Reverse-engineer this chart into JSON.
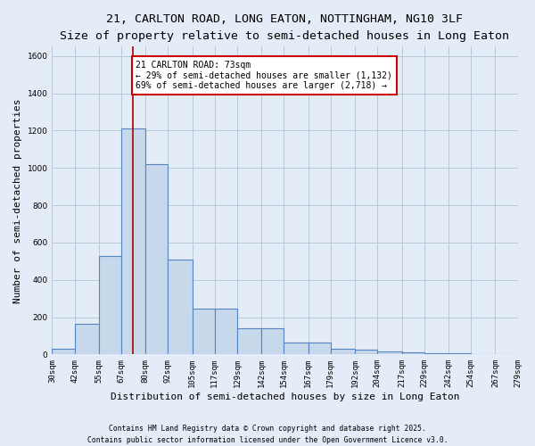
{
  "title1": "21, CARLTON ROAD, LONG EATON, NOTTINGHAM, NG10 3LF",
  "title2": "Size of property relative to semi-detached houses in Long Eaton",
  "xlabel": "Distribution of semi-detached houses by size in Long Eaton",
  "ylabel": "Number of semi-detached properties",
  "bin_edges": [
    30,
    42,
    55,
    67,
    80,
    92,
    105,
    117,
    129,
    142,
    154,
    167,
    179,
    192,
    204,
    217,
    229,
    242,
    254,
    267,
    279
  ],
  "bar_heights": [
    30,
    165,
    530,
    1210,
    1020,
    510,
    245,
    245,
    140,
    140,
    65,
    65,
    30,
    25,
    15,
    10,
    5,
    5,
    2,
    2
  ],
  "bar_color": "#c8d8eb",
  "bar_edgecolor": "#5585c0",
  "bar_linewidth": 0.8,
  "grid_color": "#b8c8dc",
  "background_color": "#e4ecf7",
  "red_line_x": 73,
  "ylim": [
    0,
    1650
  ],
  "yticks": [
    0,
    200,
    400,
    600,
    800,
    1000,
    1200,
    1400,
    1600
  ],
  "annotation_title": "21 CARLTON ROAD: 73sqm",
  "annotation_line1": "← 29% of semi-detached houses are smaller (1,132)",
  "annotation_line2": "69% of semi-detached houses are larger (2,718) →",
  "annotation_box_color": "#ffffff",
  "annotation_border_color": "#cc0000",
  "footnote1": "Contains HM Land Registry data © Crown copyright and database right 2025.",
  "footnote2": "Contains public sector information licensed under the Open Government Licence v3.0.",
  "tick_labels": [
    "30sqm",
    "42sqm",
    "55sqm",
    "67sqm",
    "80sqm",
    "92sqm",
    "105sqm",
    "117sqm",
    "129sqm",
    "142sqm",
    "154sqm",
    "167sqm",
    "179sqm",
    "192sqm",
    "204sqm",
    "217sqm",
    "229sqm",
    "242sqm",
    "254sqm",
    "267sqm",
    "279sqm"
  ],
  "title1_fontsize": 9.5,
  "title2_fontsize": 8.5,
  "tick_fontsize": 6.5,
  "ylabel_fontsize": 8,
  "xlabel_fontsize": 8,
  "annotation_fontsize": 7,
  "footnote_fontsize": 5.8
}
